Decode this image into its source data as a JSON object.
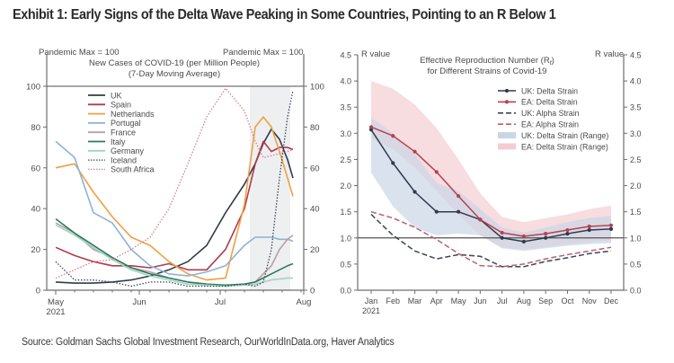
{
  "title": "Exhibit 1: Early Signs of the Delta Wave Peaking in Some Countries, Pointing to an R Below 1",
  "source": "Source: Goldman Sachs Global Investment Research, OurWorldInData.org, Haver Analytics",
  "chart_data": [
    {
      "type": "line",
      "title": "New Cases of COVID-19 (per Million People)",
      "subtitle": "(7-Day Moving Average)",
      "ylabel_left": "Pandemic Max = 100",
      "ylabel_right": "Pandemic Max = 100",
      "ylim": [
        0,
        100
      ],
      "yticks": [
        0,
        20,
        40,
        60,
        80,
        100
      ],
      "xticks": [
        {
          "label": "May",
          "sub": "2021",
          "day": 0
        },
        {
          "label": "Jun",
          "sub": "",
          "day": 31
        },
        {
          "label": "Jul",
          "sub": "",
          "day": 61
        },
        {
          "label": "Aug",
          "sub": "",
          "day": 92
        }
      ],
      "xlim_days": [
        -2,
        92
      ],
      "reference_line": 100,
      "shaded_region_days": [
        72,
        87
      ],
      "legend_placement": "top-left",
      "x_days": [
        0,
        7,
        14,
        21,
        28,
        35,
        42,
        49,
        56,
        63,
        70,
        74,
        77,
        80,
        83,
        86,
        88
      ],
      "series": [
        {
          "name": "UK",
          "color": "#2f3b4c",
          "dash": "solid",
          "values": [
            4,
            3.5,
            3.5,
            4,
            5,
            7,
            10,
            14,
            22,
            38,
            52,
            62,
            72,
            79,
            74,
            64,
            55
          ]
        },
        {
          "name": "Spain",
          "color": "#b03a4e",
          "dash": "solid",
          "values": [
            21,
            17,
            14,
            12,
            12,
            11,
            13,
            10,
            10,
            20,
            40,
            62,
            73,
            68,
            70,
            70,
            69
          ]
        },
        {
          "name": "Netherlands",
          "color": "#f0a040",
          "dash": "solid",
          "values": [
            60,
            62,
            48,
            36,
            26,
            22,
            14,
            8,
            5,
            6,
            42,
            80,
            85,
            80,
            68,
            55,
            46
          ]
        },
        {
          "name": "Portugal",
          "color": "#8ab4d8",
          "dash": "solid",
          "values": [
            73,
            65,
            38,
            33,
            20,
            12,
            8,
            7,
            9,
            12,
            22,
            26,
            26,
            26,
            25,
            25,
            24
          ]
        },
        {
          "name": "France",
          "color": "#b5a0a6",
          "dash": "solid",
          "values": [
            33,
            28,
            20,
            16,
            11,
            9,
            6,
            4,
            3,
            2,
            3,
            4,
            8,
            12,
            20,
            25,
            27
          ]
        },
        {
          "name": "Italy",
          "color": "#2d7a5a",
          "dash": "solid",
          "values": [
            35,
            28,
            22,
            16,
            11,
            8,
            6,
            4,
            3,
            2.5,
            3,
            4,
            6,
            8,
            10,
            12,
            13
          ]
        },
        {
          "name": "Germany",
          "color": "#9fd4c4",
          "dash": "solid",
          "values": [
            32,
            27,
            21,
            15,
            10,
            7,
            5,
            3,
            2.5,
            2,
            2.5,
            3,
            4,
            5,
            5.5,
            6,
            6
          ]
        },
        {
          "name": "Iceland",
          "color": "#3a4555",
          "dash": "dotted",
          "values": [
            14,
            5,
            5,
            4,
            2,
            4,
            4,
            2,
            2,
            2,
            3,
            2,
            4,
            20,
            55,
            85,
            98
          ]
        },
        {
          "name": "South Africa",
          "color": "#d2808e",
          "dash": "dotted",
          "values": [
            6,
            10,
            14,
            15,
            20,
            26,
            40,
            62,
            85,
            99,
            88,
            73,
            65,
            66,
            67,
            68,
            69
          ]
        }
      ]
    },
    {
      "type": "line",
      "title": "Effective Reproduction Number (R",
      "title_sub": "t",
      "title_end": ")",
      "title_line2": "for Different Strains of Covid-19",
      "ylabel_left": "R value",
      "ylabel_right": "R value",
      "ylim": [
        0,
        4.5
      ],
      "yticks": [
        "0.0",
        "0.5",
        "1.0",
        "1.5",
        "2.0",
        "2.5",
        "3.0",
        "3.5",
        "4.0",
        "4.5"
      ],
      "categories": [
        "Jan",
        "Feb",
        "Mar",
        "Apr",
        "May",
        "Jun",
        "Jul",
        "Aug",
        "Sep",
        "Oct",
        "Nov",
        "Dec"
      ],
      "first_category_sub": "2021",
      "reference_line": 1.0,
      "legend_placement": "top-right",
      "series": [
        {
          "name": "UK: Delta Strain",
          "color": "#2f3b4c",
          "style": "solid-marker",
          "values": [
            3.07,
            2.43,
            1.88,
            1.5,
            1.5,
            1.35,
            1.0,
            0.93,
            1.0,
            1.08,
            1.15,
            1.17
          ]
        },
        {
          "name": "EA: Delta Strain",
          "color": "#b84050",
          "style": "solid-marker",
          "values": [
            3.12,
            2.95,
            2.65,
            2.26,
            1.8,
            1.35,
            1.1,
            1.03,
            1.08,
            1.15,
            1.22,
            1.24
          ]
        },
        {
          "name": "UK: Alpha Strain",
          "color": "#3a4555",
          "style": "dashed",
          "values": [
            1.45,
            1.05,
            0.75,
            0.6,
            0.68,
            0.65,
            0.45,
            0.45,
            0.55,
            0.62,
            0.7,
            0.75
          ]
        },
        {
          "name": "EA: Alpha Strain",
          "color": "#b86070",
          "style": "dashed",
          "values": [
            1.5,
            1.38,
            1.2,
            0.97,
            0.7,
            0.47,
            0.45,
            0.5,
            0.6,
            0.68,
            0.75,
            0.82
          ]
        },
        {
          "name": "UK: Delta Strain (Range)",
          "color": "#c9d6e6",
          "style": "band",
          "lower": [
            2.25,
            1.6,
            1.2,
            1.05,
            1.08,
            1.05,
            0.8,
            0.75,
            0.8,
            0.85,
            0.88,
            0.9
          ],
          "upper": [
            3.3,
            3.0,
            2.6,
            2.05,
            1.9,
            1.55,
            1.2,
            1.1,
            1.2,
            1.3,
            1.38,
            1.42
          ]
        },
        {
          "name": "EA: Delta Strain (Range)",
          "color": "#f3cdd3",
          "style": "band",
          "lower": [
            2.9,
            2.7,
            2.35,
            1.9,
            1.45,
            1.05,
            0.82,
            0.78,
            0.82,
            0.88,
            0.92,
            0.95
          ],
          "upper": [
            4.0,
            3.85,
            3.55,
            3.1,
            2.5,
            1.85,
            1.4,
            1.3,
            1.38,
            1.45,
            1.55,
            1.62
          ]
        }
      ]
    }
  ]
}
